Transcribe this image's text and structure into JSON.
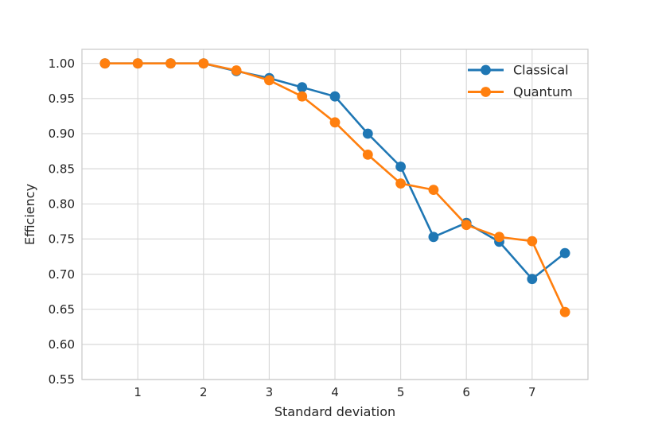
{
  "figure": {
    "background": "#ffffff"
  },
  "chart_data": {
    "type": "line",
    "title": "",
    "xlabel": "Standard deviation",
    "ylabel": "Efficiency",
    "x": [
      0.5,
      1.0,
      1.5,
      2.0,
      2.5,
      3.0,
      3.5,
      4.0,
      4.5,
      5.0,
      5.5,
      6.0,
      6.5,
      7.0,
      7.5
    ],
    "series": [
      {
        "name": "Classical",
        "color": "#1f77b4",
        "values": [
          1.0,
          1.0,
          1.0,
          1.0,
          0.989,
          0.979,
          0.966,
          0.953,
          0.9,
          0.853,
          0.753,
          0.773,
          0.746,
          0.693,
          0.73
        ]
      },
      {
        "name": "Quantum",
        "color": "#ff7f0e",
        "values": [
          1.0,
          1.0,
          1.0,
          1.0,
          0.99,
          0.976,
          0.953,
          0.916,
          0.87,
          0.829,
          0.82,
          0.77,
          0.753,
          0.747,
          0.646
        ]
      }
    ],
    "xlim": [
      0.15,
      7.85
    ],
    "ylim": [
      0.55,
      1.02
    ],
    "xticks": [
      1,
      2,
      3,
      4,
      5,
      6,
      7
    ],
    "xtick_labels": [
      "1",
      "2",
      "3",
      "4",
      "5",
      "6",
      "7"
    ],
    "yticks": [
      0.55,
      0.6,
      0.65,
      0.7,
      0.75,
      0.8,
      0.85,
      0.9,
      0.95,
      1.0
    ],
    "ytick_labels": [
      "0.55",
      "0.60",
      "0.65",
      "0.70",
      "0.75",
      "0.80",
      "0.85",
      "0.90",
      "0.95",
      "1.00"
    ],
    "grid": true,
    "legend": {
      "position": "upper right",
      "frame": false,
      "entries": [
        "Classical",
        "Quantum"
      ]
    },
    "style": {
      "grid_color": "#d9d9d9",
      "spine_color": "#cccccc",
      "text_color": "#262626",
      "line_width": 2.6,
      "marker_radius": 6.4
    }
  }
}
